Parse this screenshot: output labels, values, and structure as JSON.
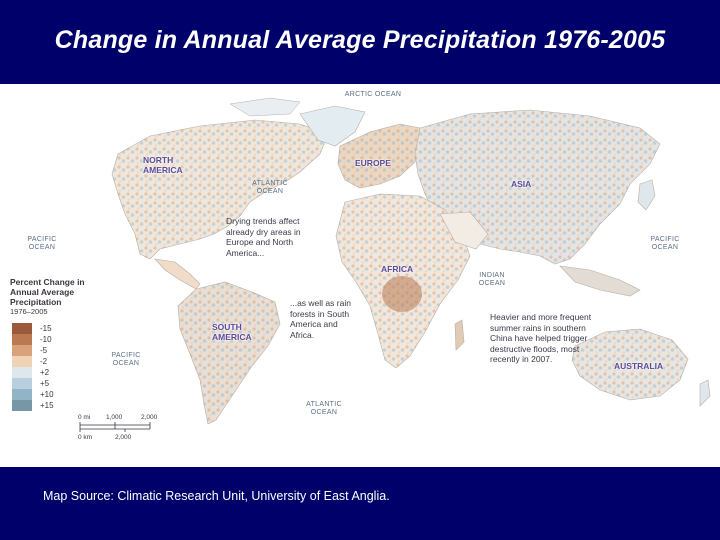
{
  "title": "Change in Annual Average Precipitation 1976-2005",
  "map": {
    "oceans": {
      "arctic": "ARCTIC OCEAN",
      "atlantic_north": "ATLANTIC OCEAN",
      "atlantic_south": "ATLANTIC OCEAN",
      "pacific_west": "PACIFIC OCEAN",
      "pacific_east": "PACIFIC OCEAN",
      "pacific_south": "PACIFIC OCEAN",
      "indian": "INDIAN OCEAN"
    },
    "regions": {
      "north_america": "NORTH AMERICA",
      "south_america": "SOUTH AMERICA",
      "europe": "EUROPE",
      "asia": "ASIA",
      "africa": "AFRICA",
      "australia": "AUSTRALIA"
    },
    "notes": {
      "drying": "Drying trends affect already dry areas in Europe and North America...",
      "rainforests": "...as well as rain forests in South America and Africa.",
      "china": "Heavier and more frequent summer rains in southern China have helped trigger destructive floods, most recently in 2007."
    },
    "legend": {
      "title": "Percent Change in Annual Average Precipitation",
      "period": "1976–2005",
      "entries": [
        {
          "label": "-15",
          "color": "#9b5a3c"
        },
        {
          "label": "-10",
          "color": "#b97a52"
        },
        {
          "label": "-5",
          "color": "#d9a27a"
        },
        {
          "label": "-2",
          "color": "#f0d2b5"
        },
        {
          "label": "+2",
          "color": "#dde8ee"
        },
        {
          "label": "+5",
          "color": "#b8cfde"
        },
        {
          "label": "+10",
          "color": "#93b4c6"
        },
        {
          "label": "+15",
          "color": "#7796a6"
        }
      ]
    },
    "scale": {
      "mi_labels": [
        "0 mi",
        "1,000",
        "2,000"
      ],
      "km_labels": [
        "0 km",
        "2,000"
      ]
    }
  },
  "source": "Map Source: Climatic Research Unit, University of East Anglia."
}
